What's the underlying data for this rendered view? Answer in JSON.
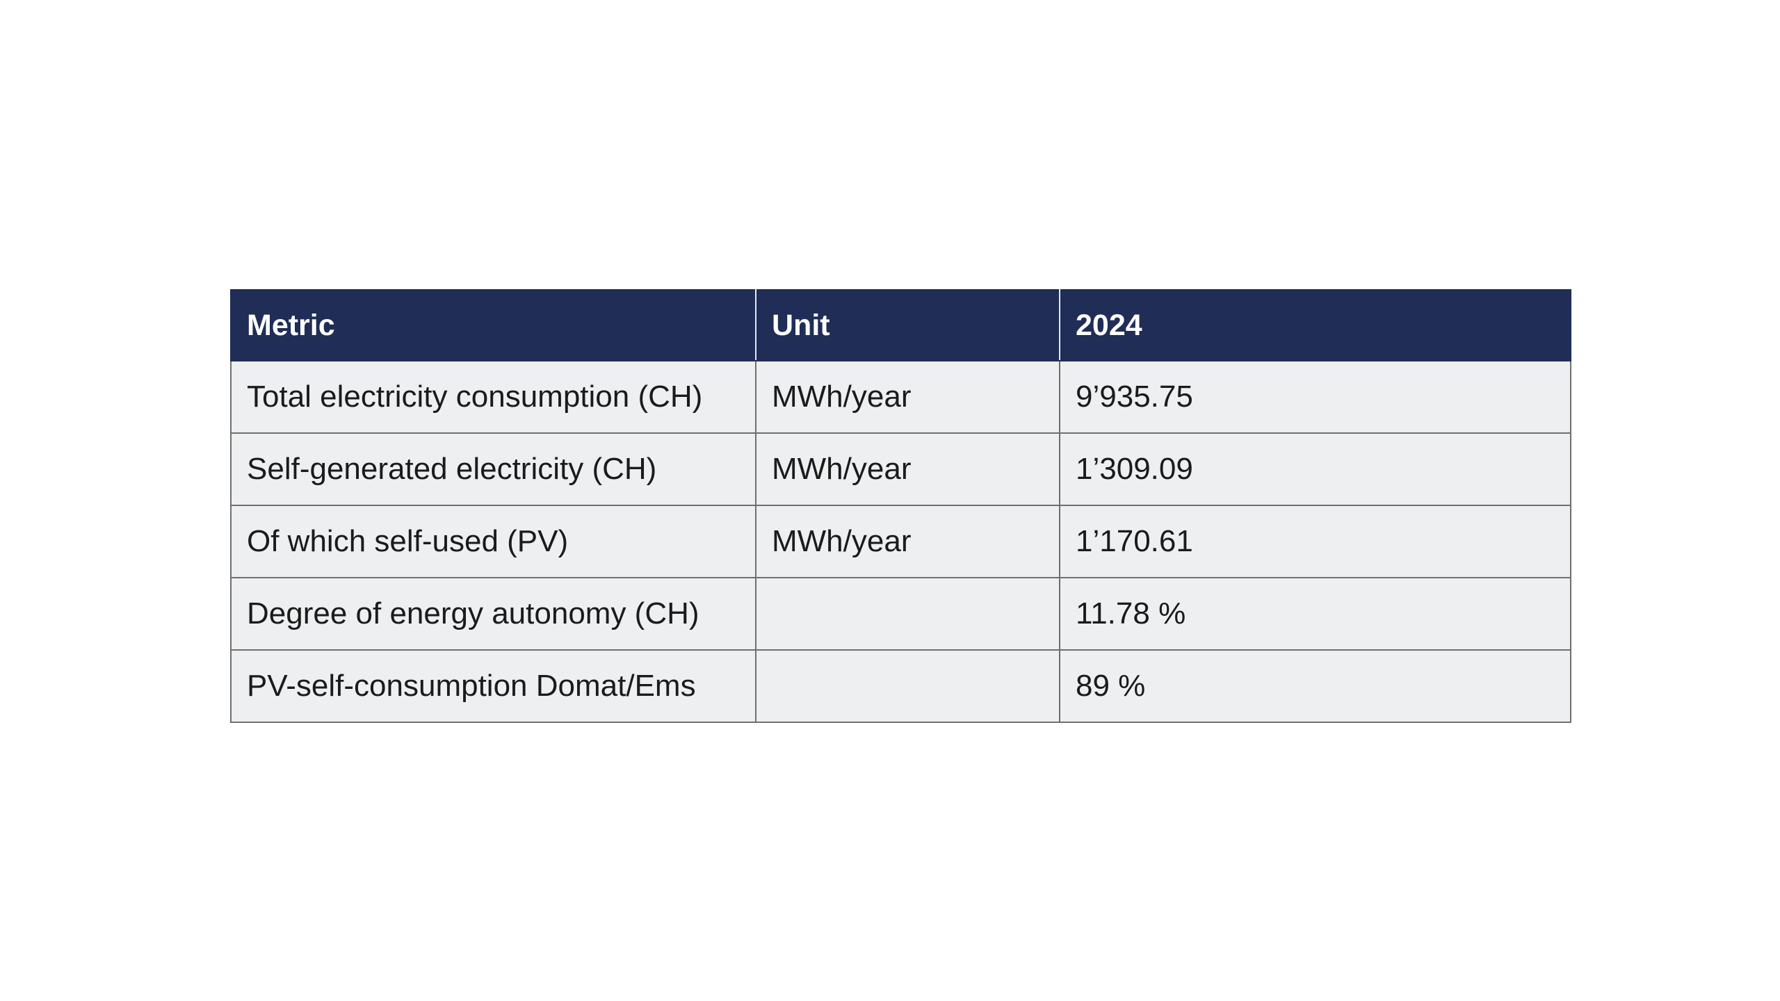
{
  "table": {
    "headers": [
      "Metric",
      "Unit",
      "2024"
    ],
    "rows": [
      [
        "Total electricity consumption (CH)",
        "MWh/year",
        "9’935.75"
      ],
      [
        "Self-generated electricity (CH)",
        "MWh/year",
        "1’309.09"
      ],
      [
        "Of which self-used (PV)",
        "MWh/year",
        "1’170.61"
      ],
      [
        "Degree of energy autonomy (CH)",
        "",
        "11.78 %"
      ],
      [
        "PV-self-consumption Domat/Ems",
        "",
        "89 %"
      ]
    ]
  },
  "colors": {
    "header_background": "#1f2d57",
    "header_text": "#ffffff",
    "cell_background": "#eeeff1",
    "border": "#6f6f6f"
  }
}
